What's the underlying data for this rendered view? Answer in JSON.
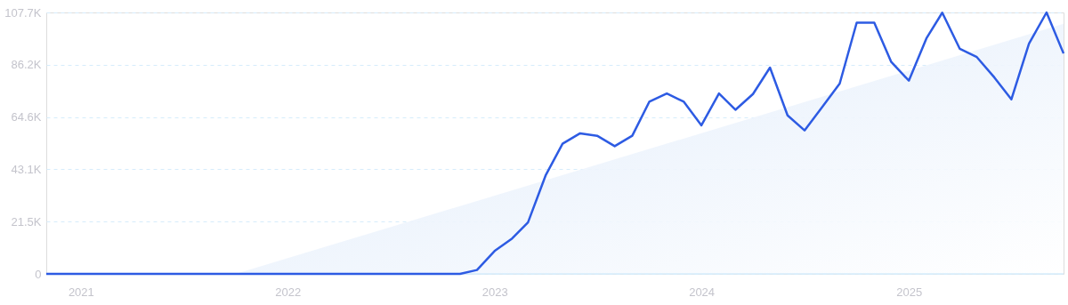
{
  "chart_data": {
    "type": "line",
    "x": [
      "2020-11",
      "2020-12",
      "2021-01",
      "2021-02",
      "2021-03",
      "2021-04",
      "2021-05",
      "2021-06",
      "2021-07",
      "2021-08",
      "2021-09",
      "2021-10",
      "2021-11",
      "2021-12",
      "2022-01",
      "2022-02",
      "2022-03",
      "2022-04",
      "2022-05",
      "2022-06",
      "2022-07",
      "2022-08",
      "2022-09",
      "2022-10",
      "2022-11",
      "2022-12",
      "2023-01",
      "2023-02",
      "2023-03",
      "2023-04",
      "2023-05",
      "2023-06",
      "2023-07",
      "2023-08",
      "2023-09",
      "2023-10",
      "2023-11",
      "2023-12",
      "2024-01",
      "2024-02",
      "2024-03",
      "2024-04",
      "2024-05",
      "2024-06",
      "2024-07",
      "2024-08",
      "2024-09",
      "2024-10",
      "2024-11",
      "2024-12",
      "2025-01",
      "2025-02",
      "2025-03",
      "2025-04",
      "2025-05",
      "2025-06",
      "2025-07",
      "2025-08",
      "2025-09",
      "2025-10"
    ],
    "series": [
      {
        "type": "area",
        "color": "#dce9fa",
        "x": [
          "2021-10",
          "2025-10"
        ],
        "values": [
          0,
          103.0
        ]
      },
      {
        "color": "#2d5be3",
        "values": [
          0,
          0,
          0,
          0,
          0,
          0,
          0,
          0,
          0,
          0,
          0,
          0,
          0,
          0,
          0,
          0,
          0,
          0,
          0,
          0,
          0,
          0,
          0,
          0,
          0,
          1.6,
          9.4,
          14.6,
          21.2,
          40.5,
          53.6,
          57.9,
          56.9,
          52.6,
          56.9,
          70.9,
          74.3,
          70.9,
          61.2,
          74.3,
          67.6,
          74.1,
          85.0,
          65.3,
          59.1,
          68.7,
          78.4,
          103.5,
          103.5,
          87.3,
          79.6,
          97.0,
          107.6,
          92.7,
          89.3,
          80.9,
          71.9,
          94.8,
          107.7,
          90.8
        ]
      }
    ],
    "xlim": [
      "2020-11",
      "2025-10"
    ],
    "xticks": [
      "2021",
      "2022",
      "2023",
      "2024",
      "2025"
    ],
    "ylim": [
      0,
      107.7
    ],
    "yticks": [
      0,
      {
        "value": 21.5,
        "label": "21.5K"
      },
      {
        "value": 43.1,
        "label": "43.1K"
      },
      {
        "value": 64.6,
        "label": "64.6K"
      },
      {
        "value": 86.2,
        "label": "86.2K"
      },
      {
        "value": 107.7,
        "label": "107.7K"
      }
    ],
    "grid": "y",
    "line_style": "solid",
    "marker": "none"
  }
}
